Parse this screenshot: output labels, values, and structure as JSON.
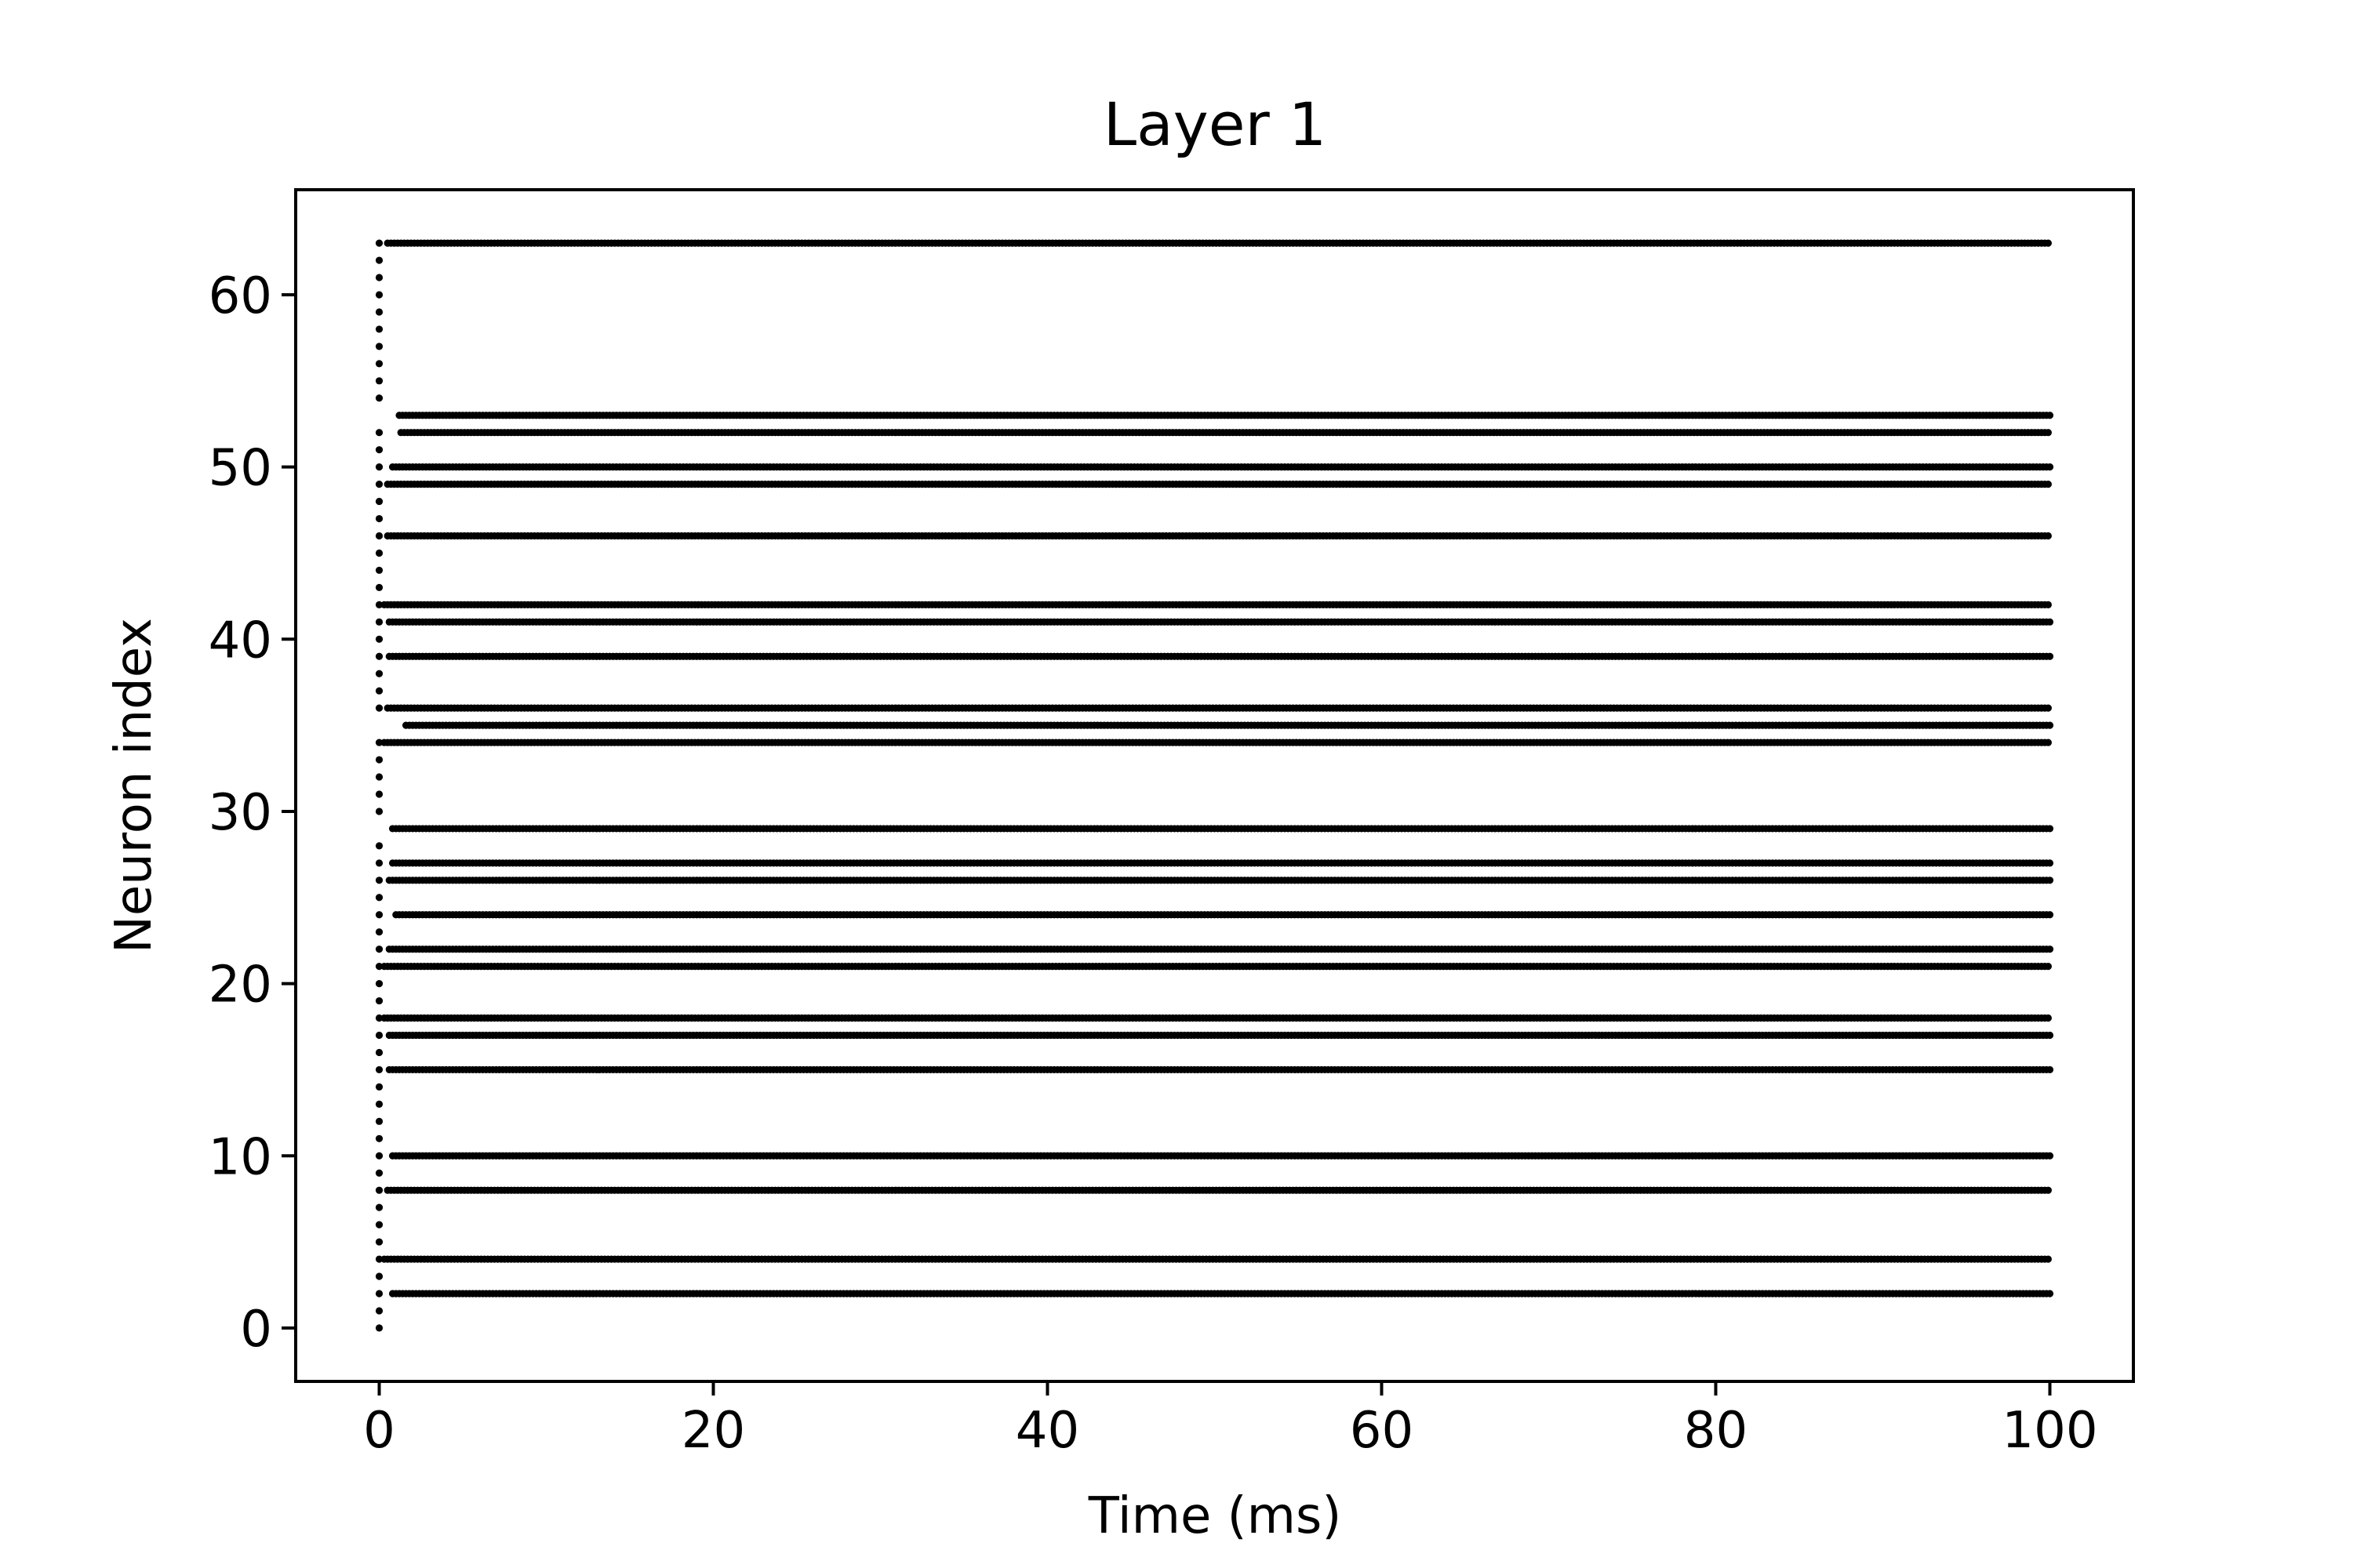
{
  "chart_data": {
    "type": "scatter",
    "title": "Layer 1",
    "xlabel": "Time (ms)",
    "ylabel": "Neuron index",
    "xlim": [
      -5,
      105
    ],
    "ylim": [
      -3.1,
      66.1
    ],
    "xticks": [
      0,
      20,
      40,
      60,
      80,
      100
    ],
    "yticks": [
      0,
      10,
      20,
      30,
      40,
      50,
      60
    ],
    "grid": false,
    "legend": "none",
    "marker_color": "#000000",
    "spike_times": {
      "start": 0,
      "end": 100,
      "step": 0.2
    },
    "series": [
      {
        "neuron": 63,
        "first_spike_ms": 0.0,
        "dense_from_ms": 0.5
      },
      {
        "neuron": 53,
        "first_spike_ms": 1.2,
        "dense_from_ms": 1.2
      },
      {
        "neuron": 52,
        "first_spike_ms": 0.0,
        "dense_from_ms": 1.3
      },
      {
        "neuron": 50,
        "first_spike_ms": 0.0,
        "dense_from_ms": 0.8
      },
      {
        "neuron": 49,
        "first_spike_ms": 0.0,
        "dense_from_ms": 0.5
      },
      {
        "neuron": 46,
        "first_spike_ms": 0.0,
        "dense_from_ms": 0.5
      },
      {
        "neuron": 42,
        "first_spike_ms": 0.0,
        "dense_from_ms": 0.3
      },
      {
        "neuron": 41,
        "first_spike_ms": 0.0,
        "dense_from_ms": 0.6
      },
      {
        "neuron": 39,
        "first_spike_ms": 0.0,
        "dense_from_ms": 0.6
      },
      {
        "neuron": 36,
        "first_spike_ms": 0.0,
        "dense_from_ms": 0.5
      },
      {
        "neuron": 35,
        "first_spike_ms": 1.6,
        "dense_from_ms": 1.6
      },
      {
        "neuron": 34,
        "first_spike_ms": 0.0,
        "dense_from_ms": 0.3
      },
      {
        "neuron": 29,
        "first_spike_ms": 0.8,
        "dense_from_ms": 0.8
      },
      {
        "neuron": 27,
        "first_spike_ms": 0.0,
        "dense_from_ms": 0.8
      },
      {
        "neuron": 26,
        "first_spike_ms": 0.0,
        "dense_from_ms": 0.6
      },
      {
        "neuron": 24,
        "first_spike_ms": 0.0,
        "dense_from_ms": 1.0
      },
      {
        "neuron": 22,
        "first_spike_ms": 0.0,
        "dense_from_ms": 0.6
      },
      {
        "neuron": 21,
        "first_spike_ms": 0.0,
        "dense_from_ms": 0.3
      },
      {
        "neuron": 18,
        "first_spike_ms": 0.0,
        "dense_from_ms": 0.3
      },
      {
        "neuron": 17,
        "first_spike_ms": 0.0,
        "dense_from_ms": 0.6
      },
      {
        "neuron": 15,
        "first_spike_ms": 0.0,
        "dense_from_ms": 0.6
      },
      {
        "neuron": 10,
        "first_spike_ms": 0.0,
        "dense_from_ms": 0.8
      },
      {
        "neuron": 8,
        "first_spike_ms": 0.0,
        "dense_from_ms": 0.5
      },
      {
        "neuron": 4,
        "first_spike_ms": 0.0,
        "dense_from_ms": 0.3
      },
      {
        "neuron": 2,
        "first_spike_ms": 0.0,
        "dense_from_ms": 0.8
      }
    ],
    "single_spike_neurons_at_t0": [
      0,
      1,
      3,
      5,
      6,
      7,
      9,
      11,
      12,
      13,
      14,
      16,
      19,
      20,
      23,
      25,
      28,
      30,
      31,
      32,
      33,
      37,
      38,
      40,
      43,
      44,
      45,
      47,
      48,
      51,
      54,
      55,
      56,
      57,
      58,
      59,
      60,
      61,
      62
    ]
  }
}
